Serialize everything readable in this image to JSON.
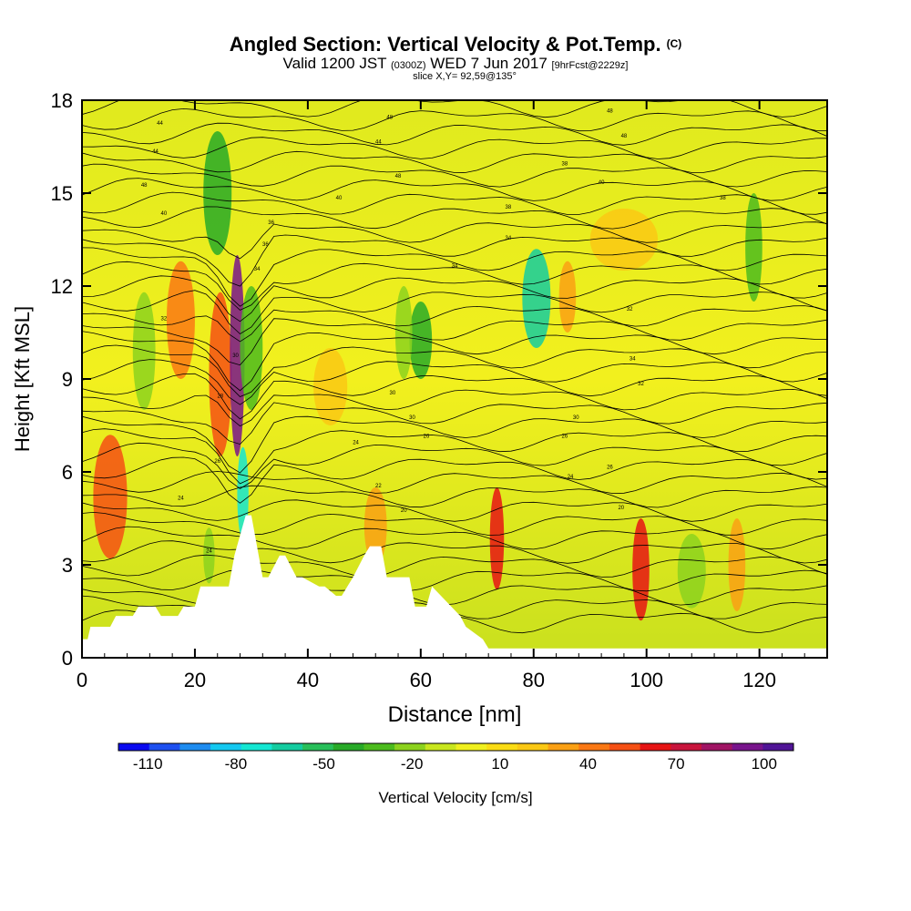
{
  "title": {
    "main": "Angled Section: Vertical Velocity & Pot.Temp.",
    "main_mark": "(C)",
    "valid_prefix": "Valid 1200 JST",
    "valid_zulu": "(0300Z)",
    "valid_date": "WED 7 Jun 2017",
    "forecast": "[9hrFcst@2229z]",
    "slice": "slice X,Y= 92,59@135°"
  },
  "chart_data": {
    "type": "heatmap",
    "xlabel": "Distance [nm]",
    "ylabel": "Height [Kft MSL]",
    "xlim": [
      0,
      132
    ],
    "ylim": [
      0,
      18
    ],
    "x_ticks": [
      0,
      20,
      40,
      60,
      80,
      100,
      120
    ],
    "y_ticks": [
      0,
      3,
      6,
      9,
      12,
      15,
      18
    ],
    "colorbar": {
      "label": "Vertical Velocity [cm/s]",
      "tick_labels": [
        "-110",
        "-80",
        "-50",
        "-20",
        "10",
        "40",
        "70",
        "100"
      ],
      "tick_values": [
        -110,
        -80,
        -50,
        -20,
        10,
        40,
        70,
        100
      ],
      "range": [
        -120,
        110
      ],
      "colors": [
        "#0a0af0",
        "#1e50f0",
        "#1e8cf0",
        "#14c8f0",
        "#14e6d2",
        "#14cca0",
        "#28bf5a",
        "#28aa28",
        "#4cbb1e",
        "#8cd21e",
        "#c8e61e",
        "#f0f01e",
        "#fadc14",
        "#fac814",
        "#faa014",
        "#fa7814",
        "#f55014",
        "#e61414",
        "#c8143c",
        "#a01464",
        "#78148c",
        "#501496"
      ]
    },
    "terrain_profile": {
      "x": [
        0,
        1,
        1.5,
        5,
        6,
        9,
        10,
        13,
        14,
        17,
        18,
        20,
        21,
        26,
        27,
        29,
        30,
        32,
        33,
        35,
        36,
        38,
        39,
        42,
        43,
        45,
        46,
        47,
        48,
        50,
        51,
        53,
        54,
        58,
        59,
        61,
        62,
        67,
        68,
        71,
        72,
        132
      ],
      "y": [
        0.6,
        0.6,
        1.0,
        1.0,
        1.35,
        1.35,
        1.65,
        1.65,
        1.35,
        1.35,
        1.65,
        1.65,
        2.3,
        2.3,
        3.3,
        4.6,
        4.6,
        2.6,
        2.6,
        3.3,
        3.3,
        2.6,
        2.6,
        2.3,
        2.3,
        2.0,
        2.0,
        2.3,
        2.6,
        3.3,
        3.6,
        3.6,
        2.6,
        2.6,
        1.65,
        1.65,
        2.3,
        1.35,
        1.0,
        0.6,
        0.3,
        0.3
      ]
    },
    "cells": [
      {
        "x": 5,
        "w": 6,
        "y0": 3.2,
        "y1": 7.2,
        "v": 55
      },
      {
        "x": 11,
        "w": 4,
        "y0": 8.0,
        "y1": 11.8,
        "v": -25
      },
      {
        "x": 17.5,
        "w": 5,
        "y0": 9.0,
        "y1": 12.8,
        "v": 45
      },
      {
        "x": 24.5,
        "w": 4,
        "y0": 6.5,
        "y1": 11.8,
        "v": 50
      },
      {
        "x": 27.5,
        "w": 2.6,
        "y0": 6.5,
        "y1": 13.0,
        "v": 95
      },
      {
        "x": 24,
        "w": 5,
        "y0": 13.0,
        "y1": 17.0,
        "v": -40
      },
      {
        "x": 30,
        "w": 4,
        "y0": 8.0,
        "y1": 12.0,
        "v": -30
      },
      {
        "x": 28.5,
        "w": 2,
        "y0": 3.8,
        "y1": 6.8,
        "v": -70
      },
      {
        "x": 22.5,
        "w": 2,
        "y0": 2.4,
        "y1": 4.2,
        "v": -20
      },
      {
        "x": 52,
        "w": 4,
        "y0": 3.0,
        "y1": 5.5,
        "v": 30
      },
      {
        "x": 60,
        "w": 4,
        "y0": 9.0,
        "y1": 11.5,
        "v": -45
      },
      {
        "x": 57,
        "w": 3,
        "y0": 9.0,
        "y1": 12.0,
        "v": -25
      },
      {
        "x": 73.5,
        "w": 2.5,
        "y0": 2.2,
        "y1": 5.5,
        "v": 60
      },
      {
        "x": 80.5,
        "w": 5,
        "y0": 10.0,
        "y1": 13.2,
        "v": -60
      },
      {
        "x": 86,
        "w": 3,
        "y0": 10.5,
        "y1": 12.8,
        "v": 35
      },
      {
        "x": 99,
        "w": 3,
        "y0": 1.2,
        "y1": 4.5,
        "v": 65
      },
      {
        "x": 108,
        "w": 5,
        "y0": 1.6,
        "y1": 4.0,
        "v": -25
      },
      {
        "x": 119,
        "w": 3,
        "y0": 11.5,
        "y1": 15.0,
        "v": -30
      },
      {
        "x": 116,
        "w": 3,
        "y0": 1.5,
        "y1": 4.5,
        "v": 30
      },
      {
        "x": 44,
        "w": 6,
        "y0": 7.5,
        "y1": 10.0,
        "v": 20
      },
      {
        "x": 96,
        "w": 12,
        "y0": 12.5,
        "y1": 14.5,
        "v": 18
      }
    ],
    "contour_labels": [
      {
        "x": 13.8,
        "y": 17.2,
        "text": "44"
      },
      {
        "x": 54.5,
        "y": 17.4,
        "text": "48"
      },
      {
        "x": 93.5,
        "y": 17.6,
        "text": "48"
      },
      {
        "x": 13.0,
        "y": 16.3,
        "text": "44"
      },
      {
        "x": 52.5,
        "y": 16.6,
        "text": "44"
      },
      {
        "x": 96.0,
        "y": 16.8,
        "text": "48"
      },
      {
        "x": 11.0,
        "y": 15.2,
        "text": "48"
      },
      {
        "x": 56.0,
        "y": 15.5,
        "text": "48"
      },
      {
        "x": 85.5,
        "y": 15.9,
        "text": "38"
      },
      {
        "x": 92.0,
        "y": 15.3,
        "text": "40"
      },
      {
        "x": 14.5,
        "y": 14.3,
        "text": "40"
      },
      {
        "x": 45.5,
        "y": 14.8,
        "text": "40"
      },
      {
        "x": 113.5,
        "y": 14.8,
        "text": "38"
      },
      {
        "x": 33.5,
        "y": 14.0,
        "text": "36"
      },
      {
        "x": 75.5,
        "y": 14.5,
        "text": "38"
      },
      {
        "x": 32.5,
        "y": 13.3,
        "text": "36"
      },
      {
        "x": 75.5,
        "y": 13.5,
        "text": "34"
      },
      {
        "x": 31.0,
        "y": 12.5,
        "text": "34"
      },
      {
        "x": 66.0,
        "y": 12.6,
        "text": "34"
      },
      {
        "x": 97.0,
        "y": 11.2,
        "text": "32"
      },
      {
        "x": 14.5,
        "y": 10.9,
        "text": "32"
      },
      {
        "x": 27.2,
        "y": 9.7,
        "text": "30"
      },
      {
        "x": 97.5,
        "y": 9.6,
        "text": "34"
      },
      {
        "x": 99.0,
        "y": 8.8,
        "text": "32"
      },
      {
        "x": 24.5,
        "y": 8.4,
        "text": "28"
      },
      {
        "x": 55.0,
        "y": 8.5,
        "text": "30"
      },
      {
        "x": 58.5,
        "y": 7.7,
        "text": "30"
      },
      {
        "x": 87.5,
        "y": 7.7,
        "text": "30"
      },
      {
        "x": 48.5,
        "y": 6.9,
        "text": "24"
      },
      {
        "x": 61.0,
        "y": 7.1,
        "text": "26"
      },
      {
        "x": 85.5,
        "y": 7.1,
        "text": "26"
      },
      {
        "x": 24.0,
        "y": 6.3,
        "text": "26"
      },
      {
        "x": 93.5,
        "y": 6.1,
        "text": "26"
      },
      {
        "x": 86.5,
        "y": 5.8,
        "text": "24"
      },
      {
        "x": 52.5,
        "y": 5.5,
        "text": "22"
      },
      {
        "x": 17.5,
        "y": 5.1,
        "text": "24"
      },
      {
        "x": 57.0,
        "y": 4.7,
        "text": "20"
      },
      {
        "x": 95.5,
        "y": 4.8,
        "text": "20"
      },
      {
        "x": 22.5,
        "y": 3.4,
        "text": "24"
      }
    ]
  }
}
